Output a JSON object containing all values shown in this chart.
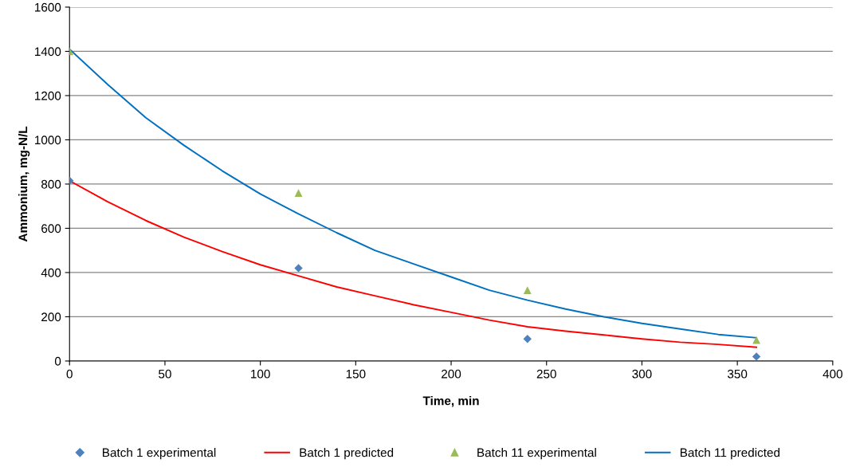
{
  "chart_data": {
    "type": "line",
    "xlabel": "Time, min",
    "ylabel": "Ammonium, mg-N/L",
    "xlim": [
      0,
      400
    ],
    "xticks": [
      0,
      50,
      100,
      150,
      200,
      250,
      300,
      350,
      400
    ],
    "ylim": [
      0,
      1600
    ],
    "yticks": [
      0,
      200,
      400,
      600,
      800,
      1000,
      1200,
      1400,
      1600
    ],
    "grid": "y",
    "legend": "bottom",
    "series": [
      {
        "name": "Batch 1 experimental",
        "type": "scatter",
        "marker": "diamond",
        "color": "#4f81bd",
        "x": [
          0,
          120,
          240,
          360
        ],
        "values": [
          815,
          420,
          100,
          20
        ]
      },
      {
        "name": "Batch 1 predicted",
        "type": "line",
        "marker": "none",
        "color": "#ff0000",
        "x": [
          0,
          20,
          40,
          60,
          80,
          100,
          120,
          140,
          160,
          180,
          200,
          220,
          240,
          260,
          280,
          300,
          320,
          340,
          360
        ],
        "values": [
          815,
          720,
          635,
          560,
          495,
          435,
          385,
          335,
          295,
          255,
          220,
          185,
          155,
          135,
          118,
          100,
          85,
          75,
          62
        ]
      },
      {
        "name": "Batch 11 experimental",
        "type": "scatter",
        "marker": "triangle",
        "color": "#9bbb59",
        "x": [
          0,
          120,
          240,
          360
        ],
        "values": [
          1400,
          760,
          320,
          95
        ]
      },
      {
        "name": "Batch 11 predicted",
        "type": "line",
        "marker": "none",
        "color": "#0070c0",
        "x": [
          0,
          20,
          40,
          60,
          80,
          100,
          120,
          140,
          160,
          180,
          200,
          220,
          240,
          260,
          280,
          300,
          320,
          340,
          360
        ],
        "values": [
          1410,
          1250,
          1100,
          975,
          860,
          755,
          665,
          580,
          500,
          440,
          380,
          320,
          275,
          235,
          200,
          170,
          145,
          120,
          105
        ]
      }
    ]
  }
}
